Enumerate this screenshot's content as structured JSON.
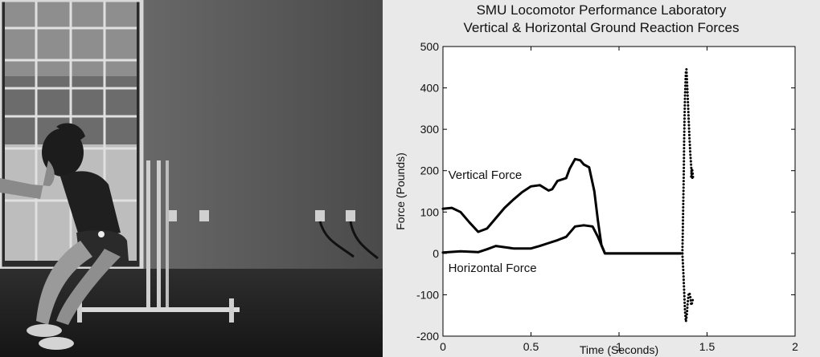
{
  "chart_data": {
    "type": "line",
    "title": "SMU Locomotor Performance Laboratory",
    "subtitle": "Vertical & Horizontal Ground Reaction Forces",
    "ylabel": "Force (Pounds)",
    "xlabel": "Time (Seconds)",
    "xlim": [
      0,
      2
    ],
    "ylim": [
      -200,
      500
    ],
    "xticks": [
      0,
      0.5,
      1,
      1.5,
      2
    ],
    "xtick_labels": [
      "0",
      "0.5",
      "1",
      "1.5",
      "2"
    ],
    "yticks": [
      -200,
      -100,
      0,
      100,
      200,
      300,
      400,
      500
    ],
    "ytick_labels": [
      "-200",
      "-100",
      "0",
      "100",
      "200",
      "300",
      "400",
      "500"
    ],
    "grid": false,
    "series": [
      {
        "name": "Vertical Force",
        "x": [
          0,
          0.05,
          0.1,
          0.15,
          0.2,
          0.25,
          0.3,
          0.35,
          0.4,
          0.45,
          0.5,
          0.55,
          0.6,
          0.62,
          0.65,
          0.7,
          0.72,
          0.75,
          0.78,
          0.8,
          0.83,
          0.86,
          0.88,
          0.9,
          0.92,
          1.0,
          1.1,
          1.2,
          1.3,
          1.35
        ],
        "values": [
          108,
          110,
          100,
          75,
          52,
          60,
          85,
          110,
          130,
          148,
          162,
          165,
          152,
          155,
          175,
          182,
          205,
          228,
          225,
          215,
          208,
          150,
          80,
          20,
          0,
          0,
          0,
          0,
          0,
          0
        ]
      },
      {
        "name": "Horizontal Force",
        "x": [
          0,
          0.1,
          0.2,
          0.25,
          0.3,
          0.35,
          0.4,
          0.5,
          0.55,
          0.6,
          0.65,
          0.7,
          0.75,
          0.8,
          0.85,
          0.88,
          0.9,
          0.92,
          1.0,
          1.1,
          1.2,
          1.3,
          1.35
        ],
        "values": [
          2,
          5,
          3,
          10,
          18,
          15,
          12,
          12,
          18,
          25,
          32,
          40,
          65,
          68,
          65,
          40,
          20,
          0,
          0,
          0,
          0,
          0,
          0
        ]
      },
      {
        "x": [
          1.36,
          1.362,
          1.365,
          1.368,
          1.37,
          1.372,
          1.375,
          1.378,
          1.38,
          1.383,
          1.386,
          1.39,
          1.395,
          1.4,
          1.405,
          1.41,
          1.412,
          1.415,
          1.418,
          1.42,
          1.418,
          1.415,
          1.412,
          1.41
        ],
        "values": [
          0,
          50,
          120,
          200,
          270,
          330,
          380,
          420,
          440,
          445,
          420,
          380,
          330,
          280,
          240,
          210,
          195,
          185,
          180,
          185,
          195,
          205,
          195,
          185
        ]
      },
      {
        "x": [
          1.36,
          1.365,
          1.37,
          1.375,
          1.38,
          1.385,
          1.39,
          1.395,
          1.4,
          1.405,
          1.41,
          1.415,
          1.42
        ],
        "values": [
          0,
          -40,
          -90,
          -140,
          -165,
          -150,
          -120,
          -100,
          -95,
          -105,
          -125,
          -120,
          -110
        ]
      }
    ],
    "annotations": [
      {
        "text": "Vertical Force",
        "x": 0.03,
        "y": 180
      },
      {
        "text": "Horizontal Force",
        "x": 0.03,
        "y": -45
      }
    ]
  }
}
